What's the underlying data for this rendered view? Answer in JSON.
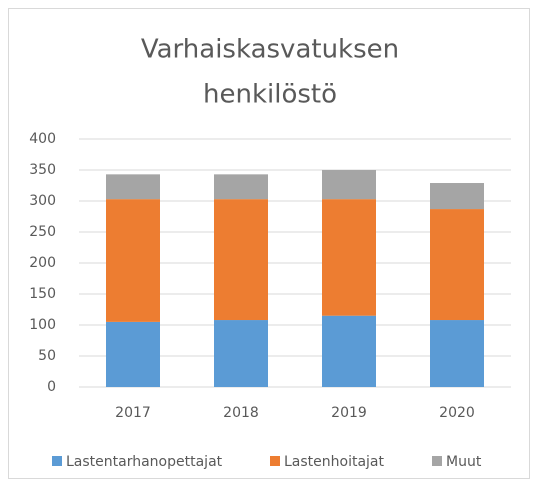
{
  "chart_data": {
    "type": "stacked_bar",
    "title": [
      "Varhaiskasvatuksen",
      "henkilöstö"
    ],
    "categories": [
      "2017",
      "2018",
      "2019",
      "2020"
    ],
    "series": [
      {
        "name": "Lastentarhanopettajat",
        "color": "#5b9bd5",
        "values": [
          105,
          108,
          115,
          108
        ]
      },
      {
        "name": "Lastenhoitajat",
        "color": "#ed7d31",
        "values": [
          198,
          195,
          188,
          179
        ]
      },
      {
        "name": "Muut",
        "color": "#a5a5a5",
        "values": [
          40,
          40,
          47,
          42
        ]
      }
    ],
    "ylim": [
      0,
      400
    ],
    "yticks": [
      0,
      50,
      100,
      150,
      200,
      250,
      300,
      350,
      400
    ],
    "grid": true,
    "legend": "bottom"
  }
}
